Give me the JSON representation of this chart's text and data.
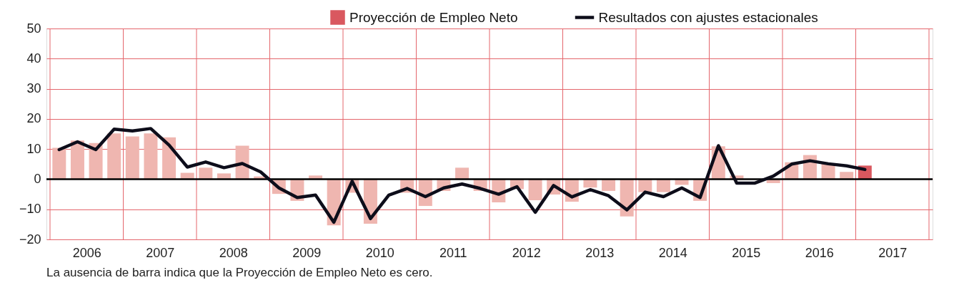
{
  "chart_data": {
    "type": "bar",
    "x": [
      2006.125,
      2006.375,
      2006.625,
      2006.875,
      2007.125,
      2007.375,
      2007.625,
      2007.875,
      2008.125,
      2008.375,
      2008.625,
      2008.875,
      2009.125,
      2009.375,
      2009.625,
      2009.875,
      2010.125,
      2010.375,
      2010.625,
      2010.875,
      2011.125,
      2011.375,
      2011.625,
      2011.875,
      2012.125,
      2012.375,
      2012.625,
      2012.875,
      2013.125,
      2013.375,
      2013.625,
      2013.875,
      2014.125,
      2014.375,
      2014.625,
      2014.875,
      2015.125,
      2015.375,
      2015.625,
      2015.875,
      2016.125,
      2016.375,
      2016.625,
      2016.875,
      2017.125
    ],
    "series": [
      {
        "color": "#efb6b0",
        "values": [
          10.4,
          12.8,
          12.0,
          15.2,
          14.2,
          15.2,
          13.9,
          2.1,
          3.8,
          1.9,
          11.1,
          0.9,
          -4.9,
          -7.2,
          1.2,
          -15.3,
          -4.5,
          -14.8,
          0,
          -4.5,
          -8.9,
          -3.9,
          3.8,
          -3.9,
          -7.7,
          -3.3,
          -7.0,
          -5.1,
          -7.5,
          -2.8,
          -3.9,
          -12.4,
          -4.3,
          -4.3,
          -1.9,
          -7.2,
          10.9,
          1.2,
          0,
          -1.3,
          5.6,
          8.0,
          5.2,
          2.4,
          null
        ]
      },
      {
        "name": "Proyección de Empleo Neto",
        "color": "#d9585f",
        "values": [
          null,
          null,
          null,
          null,
          null,
          null,
          null,
          null,
          null,
          null,
          null,
          null,
          null,
          null,
          null,
          null,
          null,
          null,
          null,
          null,
          null,
          null,
          null,
          null,
          null,
          null,
          null,
          null,
          null,
          null,
          null,
          null,
          null,
          null,
          null,
          null,
          null,
          null,
          null,
          null,
          null,
          null,
          null,
          null,
          4.5
        ]
      },
      {
        "name": "Resultados con ajustes estacionales",
        "type": "line",
        "color": "#0d0d1a",
        "values": [
          9.8,
          12.4,
          9.8,
          16.6,
          16.0,
          16.8,
          11.3,
          4.0,
          5.7,
          3.8,
          5.2,
          2.4,
          -2.9,
          -6.1,
          -5.3,
          -14.3,
          -0.7,
          -13.1,
          -5.3,
          -3.1,
          -5.8,
          -2.9,
          -1.6,
          -3.1,
          -5.0,
          -2.5,
          -11.0,
          -2.1,
          -5.9,
          -3.5,
          -5.5,
          -10.2,
          -4.3,
          -5.8,
          -2.9,
          -6.1,
          11.1,
          -1.3,
          -1.3,
          1.0,
          5.0,
          6.1,
          5.1,
          4.4,
          3.2
        ]
      }
    ],
    "xlim": [
      2006,
      2018
    ],
    "xticks": [
      {
        "value": 2006,
        "label": null
      },
      {
        "value": 2006.5,
        "label": "2006"
      },
      {
        "value": 2007,
        "label": null
      },
      {
        "value": 2007.5,
        "label": "2007"
      },
      {
        "value": 2008,
        "label": null
      },
      {
        "value": 2008.5,
        "label": "2008"
      },
      {
        "value": 2009,
        "label": null
      },
      {
        "value": 2009.5,
        "label": "2009"
      },
      {
        "value": 2010,
        "label": null
      },
      {
        "value": 2010.5,
        "label": "2010"
      },
      {
        "value": 2011,
        "label": null
      },
      {
        "value": 2011.5,
        "label": "2011"
      },
      {
        "value": 2012,
        "label": null
      },
      {
        "value": 2012.5,
        "label": "2012"
      },
      {
        "value": 2013,
        "label": null
      },
      {
        "value": 2013.5,
        "label": "2013"
      },
      {
        "value": 2014,
        "label": null
      },
      {
        "value": 2014.5,
        "label": "2014"
      },
      {
        "value": 2015,
        "label": null
      },
      {
        "value": 2015.5,
        "label": "2015"
      },
      {
        "value": 2016,
        "label": null
      },
      {
        "value": 2016.5,
        "label": "2016"
      },
      {
        "value": 2017,
        "label": null
      },
      {
        "value": 2017.5,
        "label": "2017"
      },
      {
        "value": 2018,
        "label": null
      }
    ],
    "ylim": [
      -20,
      50
    ],
    "yticks": [
      -20,
      -10,
      0,
      10,
      20,
      30,
      40,
      50
    ],
    "ref_lines": [
      {
        "axis": "y",
        "value": 0,
        "color": "#000000"
      }
    ],
    "grid": true,
    "legend": "top",
    "annotations": [
      "La ausencia de barra indica que la Proyección de Empleo Neto es cero."
    ]
  }
}
